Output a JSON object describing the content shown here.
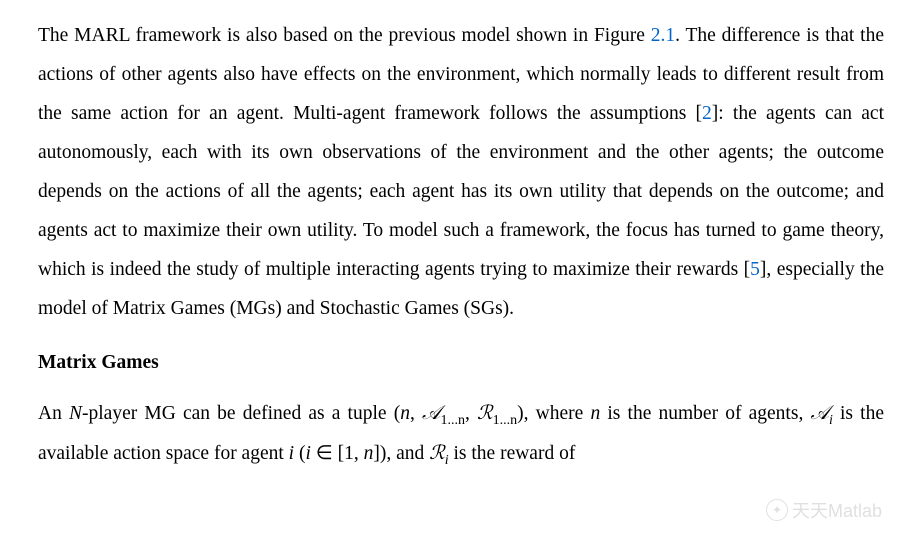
{
  "paragraph1": {
    "parts": [
      {
        "type": "text",
        "value": "The MARL framework is also based on the previous model shown in Figure "
      },
      {
        "type": "link",
        "value": "2.1"
      },
      {
        "type": "text",
        "value": ". The difference is that the actions of other agents also have effects on the environment, which normally leads to different result from the same action for an agent. Multi-agent frame­work follows the assumptions ["
      },
      {
        "type": "link",
        "value": "2"
      },
      {
        "type": "text",
        "value": "]: the agents can act autonomously, each with its own observations of the environment and the other agents; the outcome depends on the ac­tions of all the agents; each agent has its own utility that depends on the outcome; and agents act to maximize their own utility. To model such a framework, the focus has turned to game theory, which is indeed the study of multiple interacting agents trying to maximize their rewards ["
      },
      {
        "type": "link",
        "value": "5"
      },
      {
        "type": "text",
        "value": "], especially the model of Matrix Games (MGs) and Stochastic Games (SGs)."
      }
    ]
  },
  "heading1": "Matrix Games",
  "paragraph2": {
    "pre": "An ",
    "N": "N",
    "mid1": "-player MG can be defined as a tuple (",
    "tuple_n": "n",
    "comma1": ", ",
    "A": "𝒜",
    "A_sub": "1...n",
    "comma2": ", ",
    "R": "ℛ",
    "R_sub": "1...n",
    "mid2": "), where ",
    "n2": "n",
    "mid3": " is the number of agents, ",
    "Ai": "𝒜",
    "Ai_sub": "i",
    "mid4": " is the available action space for agent ",
    "i1": "i",
    "paren_open": " (",
    "i2": "i",
    "in": " ∈ [1, ",
    "n3": "n",
    "paren_close": "]), and ",
    "Ri": "ℛ",
    "Ri_sub": "i",
    "end": " is the reward of"
  },
  "watermark": "天天Matlab",
  "colors": {
    "text": "#000000",
    "link": "#0066cc",
    "background": "#ffffff",
    "watermark": "#cccccc"
  },
  "typography": {
    "body_fontsize": 19.5,
    "line_height": 2.0,
    "font_family": "Times New Roman"
  }
}
